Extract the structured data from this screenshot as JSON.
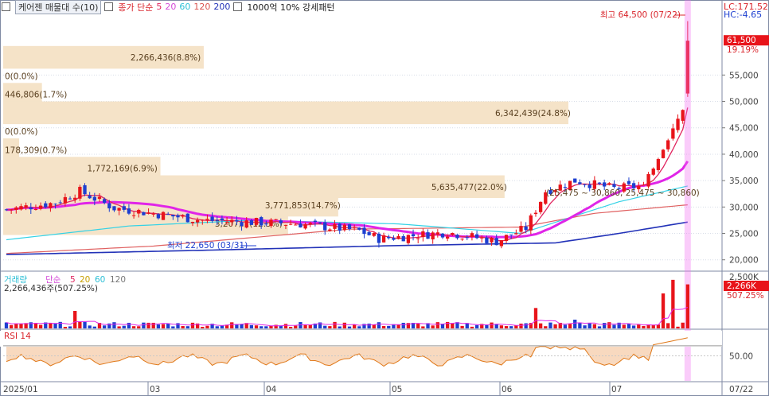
{
  "header": {
    "stock_box": "케어젠 매물대 수(10)",
    "ma_label": "종가 단순",
    "ma_periods": [
      "5",
      "20",
      "60",
      "120",
      "200"
    ],
    "pattern_label": "1000억 10% 강세패턴"
  },
  "right_panel": {
    "lc": "LC:171.52",
    "hc": "HC:-4.65",
    "price_badge": "61,500",
    "price_pct": "19.19%",
    "volume_badge": "2,266K",
    "volume_pct": "507.25%"
  },
  "colors": {
    "up": "#e8141a",
    "down": "#1d3fd0",
    "ma5": "#e0245e",
    "ma20": "#e025e8",
    "ma60": "#33d2e6",
    "ma120": "#e06060",
    "ma200": "#2232b8",
    "band": "#f5e3c8"
  },
  "chart_data": [
    {
      "type": "candlestick",
      "y_ticks": [
        "55,000",
        "50,000",
        "45,000",
        "40,000",
        "35,000",
        "30,000",
        "25,000",
        "20,000"
      ],
      "ylim": [
        18000,
        66500
      ],
      "x_ticks": [
        "2025/01",
        "03",
        "04",
        "05",
        "06",
        "07",
        "07/22"
      ],
      "annotations": {
        "high": "최고 64,500 (07/22)",
        "low": "최저 22,650 (03/31)",
        "range": "(25,475 ~ 30,860, 25,475 ~ 30,860)"
      },
      "volume_profile": [
        {
          "price": 58500,
          "label": "2,266,436(8.8%)",
          "width_pct": 8.8
        },
        {
          "price": 55000,
          "label": "0(0.0%)",
          "width_pct": 0
        },
        {
          "price": 51500,
          "label": "446,806(1.7%)",
          "width_pct": 1.7
        },
        {
          "price": 48000,
          "label": "6,342,439(24.8%)",
          "width_pct": 24.8
        },
        {
          "price": 44500,
          "label": "0(0.0%)",
          "width_pct": 0
        },
        {
          "price": 41000,
          "label": "178,309(0.7%)",
          "width_pct": 0.7
        },
        {
          "price": 37500,
          "label": "1,772,169(6.9%)",
          "width_pct": 6.9
        },
        {
          "price": 34000,
          "label": "5,635,477(22.0%)",
          "width_pct": 22.0
        },
        {
          "price": 30500,
          "label": "3,771,853(14.7%)",
          "width_pct": 14.7
        },
        {
          "price": 27000,
          "label": "3,207,...(12.5%)",
          "width_pct": 12.5
        }
      ]
    },
    {
      "type": "bar",
      "title": "거래량",
      "ma_label": "단순",
      "ma_periods": [
        "5",
        "20",
        "60",
        "120"
      ],
      "summary": "2,266,436주(507.25%)",
      "y_ticks": [
        "2,500K"
      ]
    },
    {
      "type": "line",
      "title": "RSI 14",
      "ylim": [
        0,
        100
      ],
      "y_ticks": [
        "50.00"
      ]
    }
  ]
}
